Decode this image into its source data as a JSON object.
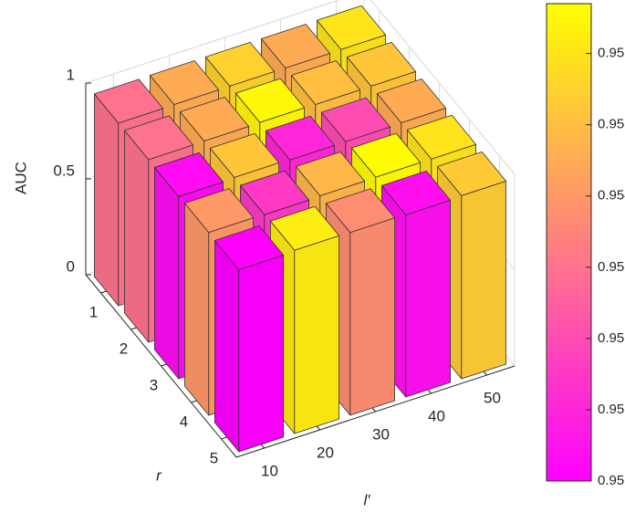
{
  "chart_data": {
    "type": "bar3d",
    "zlabel": "AUC",
    "xlabel": "l′",
    "ylabel": "r",
    "x_categories": [
      10,
      20,
      30,
      40,
      50
    ],
    "y_categories": [
      1,
      2,
      3,
      4,
      5
    ],
    "values": [
      [
        0.953,
        0.9545,
        0.9555,
        0.9545,
        0.956
      ],
      [
        0.953,
        0.9545,
        0.9565,
        0.955,
        0.9552
      ],
      [
        0.9503,
        0.9552,
        0.951,
        0.952,
        0.9545
      ],
      [
        0.954,
        0.9515,
        0.9548,
        0.9566,
        0.956
      ],
      [
        0.95,
        0.9562,
        0.9537,
        0.9504,
        0.9553
      ]
    ],
    "zlim": [
      0,
      1
    ],
    "zticks": [
      0,
      0.5,
      1
    ],
    "grid": true,
    "colormap": [
      "#ff00ff",
      "#ffff00"
    ],
    "clim": [
      0.95,
      0.9567
    ],
    "cticks": [
      0.95,
      0.951,
      0.952,
      0.953,
      0.954,
      0.955,
      0.956
    ]
  }
}
